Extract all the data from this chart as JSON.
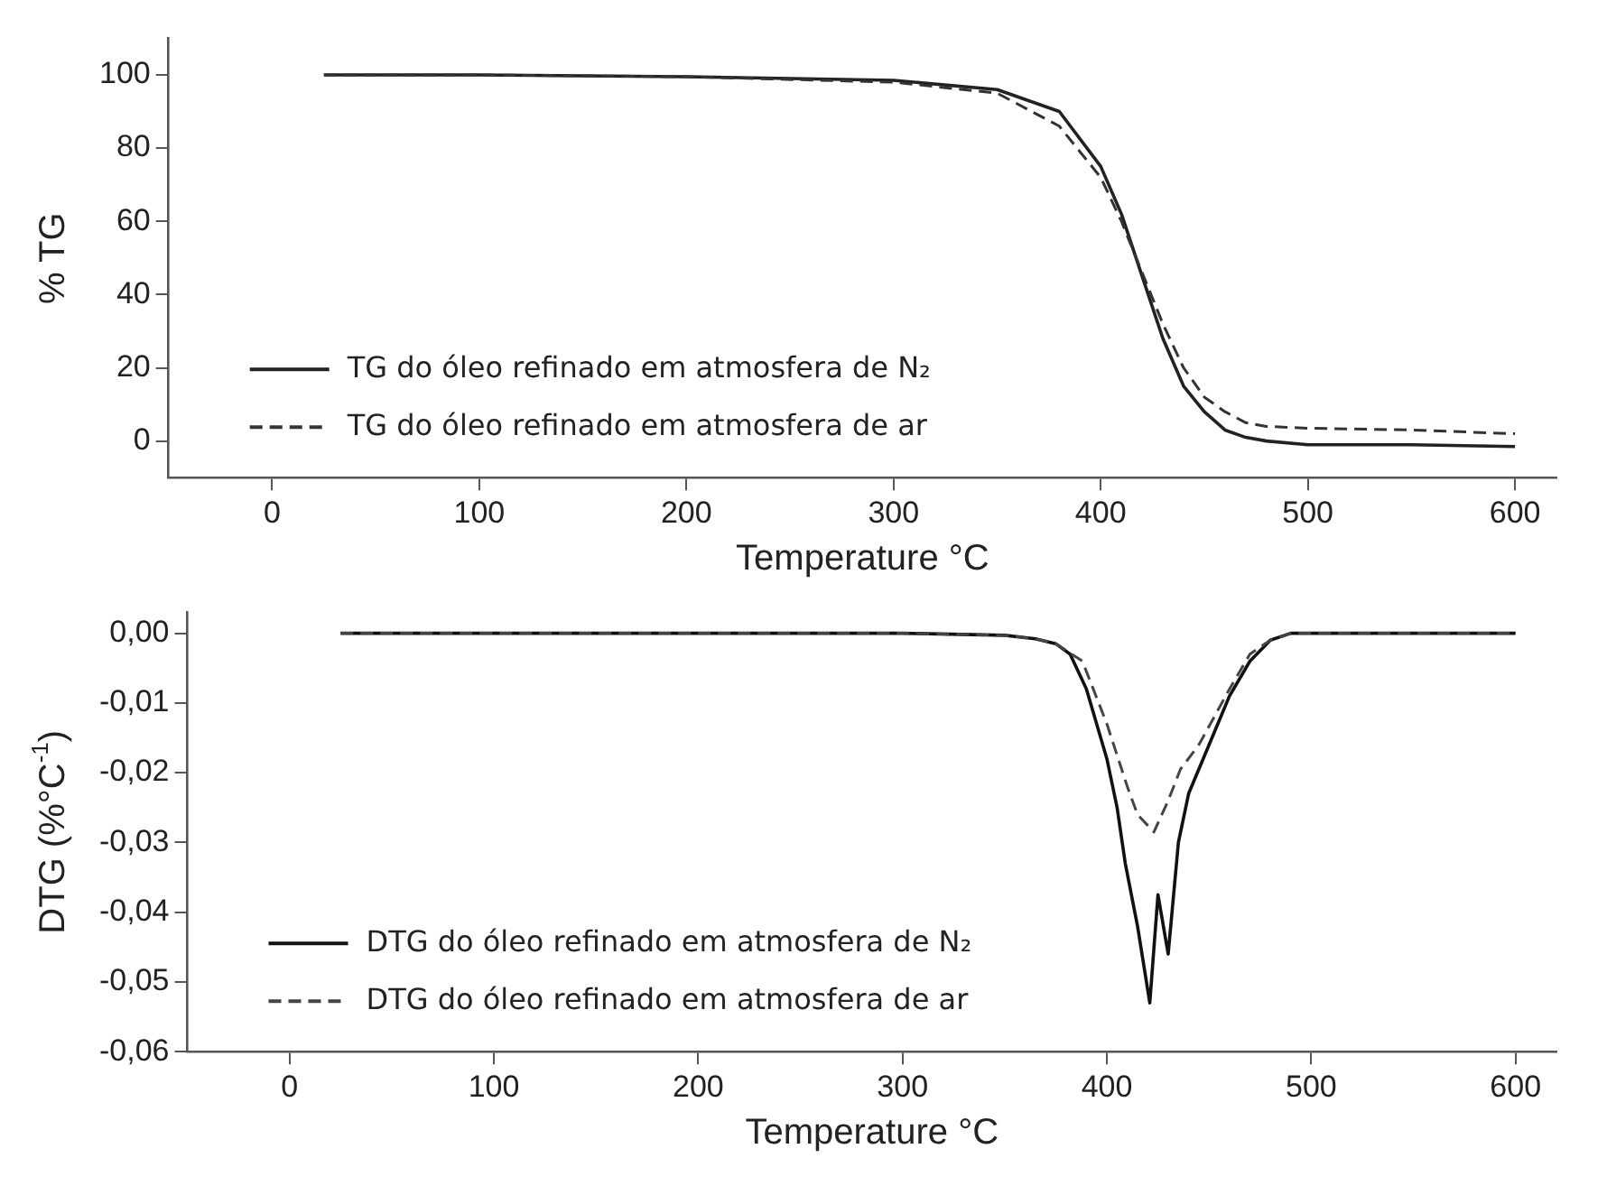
{
  "chart_data": [
    {
      "type": "line",
      "xlabel": "Temperature °C",
      "ylabel": "% TG",
      "xlim": [
        -50,
        620
      ],
      "xticks": [
        0,
        100,
        200,
        300,
        400,
        500,
        600
      ],
      "ylim": [
        -10,
        110
      ],
      "yticks": [
        0,
        20,
        40,
        60,
        80,
        100
      ],
      "legend": "bottom left",
      "series": [
        {
          "name": "TG do óleo refinado em atmosfera de N₂",
          "color": "#222222",
          "line_style": "solid",
          "x": [
            25,
            100,
            200,
            300,
            350,
            380,
            400,
            410,
            420,
            430,
            440,
            450,
            460,
            470,
            480,
            500,
            550,
            600
          ],
          "values": [
            100,
            100,
            99.5,
            98.5,
            96,
            90,
            75,
            62,
            45,
            28,
            15,
            8,
            3,
            1,
            0,
            -1,
            -1,
            -1.5
          ]
        },
        {
          "name": "TG do óleo refinado em atmosfera de ar",
          "color": "#333333",
          "line_style": "dashed",
          "x": [
            25,
            100,
            200,
            300,
            350,
            380,
            400,
            410,
            420,
            430,
            440,
            450,
            460,
            470,
            480,
            500,
            550,
            600
          ],
          "values": [
            100,
            100,
            99.5,
            98,
            95,
            86,
            72,
            60,
            46,
            32,
            20,
            12,
            8,
            5,
            4,
            3.5,
            3,
            2
          ]
        }
      ]
    },
    {
      "type": "line",
      "xlabel": "Temperature °C",
      "ylabel": "DTG (%°C$^{-1}$)",
      "xlim": [
        -50,
        620
      ],
      "xticks": [
        0,
        100,
        200,
        300,
        400,
        500,
        600
      ],
      "ylim": [
        -0.06,
        0.003
      ],
      "yticks": [
        {
          "value": 0,
          "label": "0,00"
        },
        {
          "value": -0.01,
          "label": "-0,01"
        },
        {
          "value": -0.02,
          "label": "-0,02"
        },
        {
          "value": -0.03,
          "label": "-0,03"
        },
        {
          "value": -0.04,
          "label": "-0,04"
        },
        {
          "value": -0.05,
          "label": "-0,05"
        },
        {
          "value": -0.06,
          "label": "-0,06"
        }
      ],
      "legend": "bottom left",
      "series": [
        {
          "name": "DTG do óleo refinado em atmosfera de N₂",
          "color": "#111111",
          "line_style": "solid",
          "x": [
            25,
            100,
            200,
            300,
            350,
            365,
            375,
            382,
            390,
            400,
            405,
            409,
            415,
            421,
            425,
            430,
            435,
            440,
            450,
            460,
            470,
            480,
            490,
            550,
            600
          ],
          "values": [
            0,
            0,
            0,
            0,
            -0.0003,
            -0.0008,
            -0.0015,
            -0.003,
            -0.008,
            -0.018,
            -0.025,
            -0.033,
            -0.042,
            -0.053,
            -0.0375,
            -0.046,
            -0.03,
            -0.023,
            -0.016,
            -0.009,
            -0.004,
            -0.001,
            0,
            0,
            0
          ]
        },
        {
          "name": "DTG do óleo refinado em atmosfera de ar",
          "color": "#444444",
          "line_style": "dashed",
          "x": [
            25,
            100,
            200,
            300,
            350,
            365,
            375,
            388,
            400,
            410,
            415,
            423,
            430,
            436,
            445,
            460,
            470,
            480,
            490,
            550,
            600
          ],
          "values": [
            0,
            0,
            0,
            0,
            -0.0003,
            -0.0008,
            -0.0015,
            -0.004,
            -0.013,
            -0.022,
            -0.026,
            -0.0285,
            -0.024,
            -0.0195,
            -0.016,
            -0.008,
            -0.003,
            -0.001,
            0,
            0,
            0
          ]
        }
      ]
    }
  ]
}
